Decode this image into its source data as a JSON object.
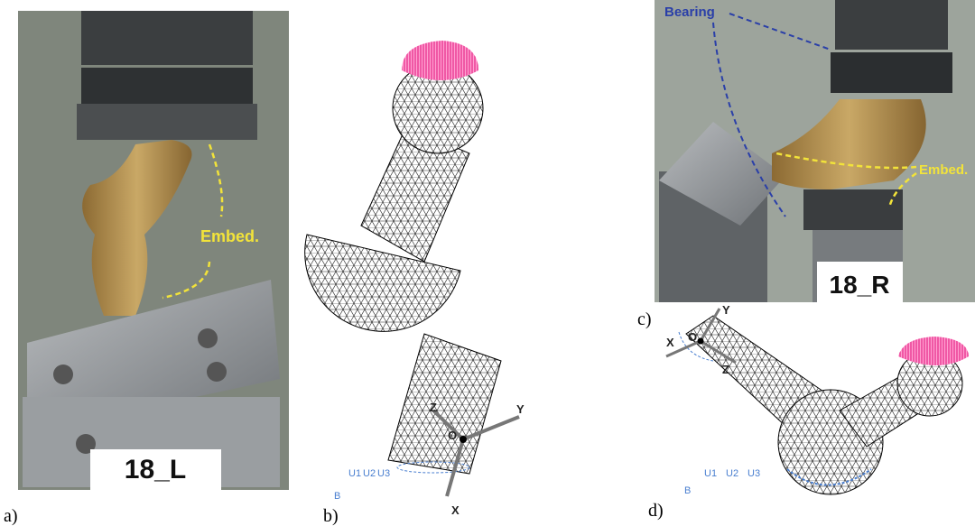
{
  "panels": [
    {
      "label": "a)",
      "annotation": "Embed.",
      "specimen": "18_L"
    },
    {
      "label": "b)",
      "axes": {
        "x": "X",
        "y": "Y",
        "z": "Z",
        "origin": "O"
      },
      "boundary": "B",
      "dofs": [
        "U1",
        "U2",
        "U3"
      ]
    },
    {
      "label": "c)",
      "annotations": [
        "Bearing",
        "Embed."
      ],
      "specimen": "18_R"
    },
    {
      "label": "d)",
      "axes": {
        "x": "X",
        "y": "Y",
        "z": "Z",
        "origin": "O"
      },
      "boundary": "B",
      "dofs": [
        "U1",
        "U2",
        "U3"
      ]
    }
  ]
}
